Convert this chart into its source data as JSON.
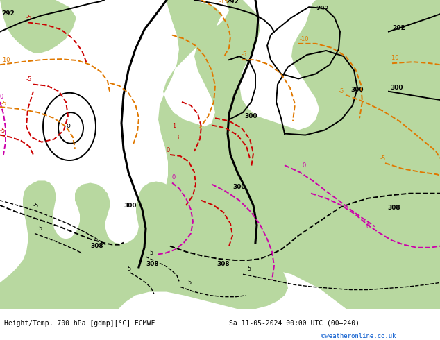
{
  "title_left": "Height/Temp. 700 hPa [gdmp][°C] ECMWF",
  "title_right": "Sa 11-05-2024 00:00 UTC (00+240)",
  "credit": "©weatheronline.co.uk",
  "fig_width": 6.34,
  "fig_height": 4.9,
  "dpi": 100,
  "map_bg_gray": "#c8c8c8",
  "map_bg_green": "#b8d8a0",
  "footer_bg": "#e8e8e8",
  "footer_text_color": "#000000",
  "credit_color": "#0055cc",
  "contour_black": "#000000",
  "contour_orange": "#e07800",
  "contour_red": "#cc0000",
  "contour_magenta": "#cc00aa",
  "label_fontsize": 6.5,
  "contour_lw_thick": 2.2,
  "contour_lw_thin": 1.4
}
